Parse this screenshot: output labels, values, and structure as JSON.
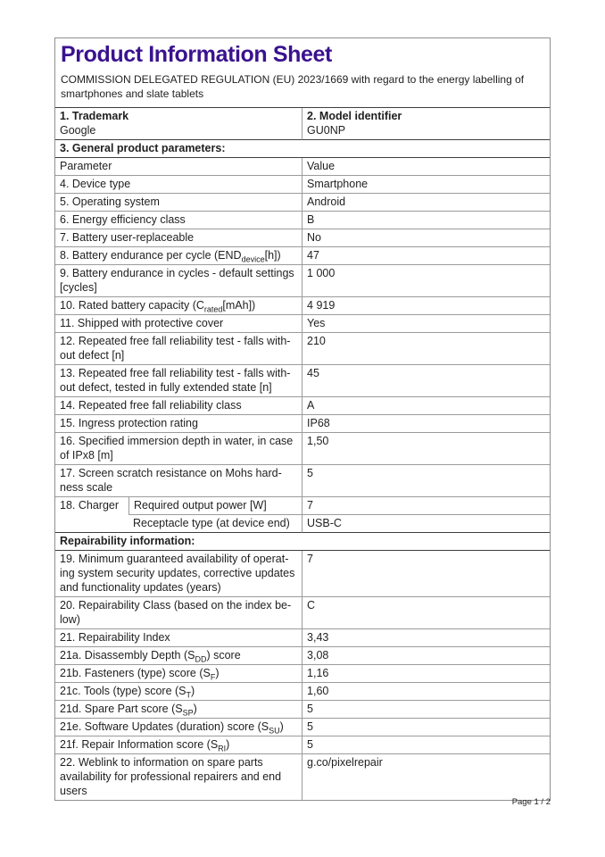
{
  "colors": {
    "title": "#3a128f",
    "text": "#1f1f1f",
    "border": "#9b9b9b",
    "border_dark": "#3d3d3d"
  },
  "header": {
    "title": "Product Information Sheet",
    "subtitle_lines": [
      "COMMISSION DELEGATED REGULATION (EU) 2023/1669 with regard to the energy labelling of",
      "smartphones and slate tablets"
    ]
  },
  "footer": {
    "page_label": "Page 1 / 2"
  },
  "table": {
    "rows": [
      {
        "type": "brand",
        "cells": [
          {
            "label": "1. Trademark",
            "value": "Google"
          },
          {
            "label": "2. Model identifier",
            "value": "GU0NP"
          }
        ]
      },
      {
        "type": "section",
        "text": "3. General product parameters:"
      },
      {
        "type": "pv",
        "param": [
          {
            "t": "Parameter"
          }
        ],
        "value": "Value"
      },
      {
        "type": "pv",
        "param": [
          {
            "t": "4. Device type"
          }
        ],
        "value": "Smartphone"
      },
      {
        "type": "pv",
        "param": [
          {
            "t": "5. Operating system"
          }
        ],
        "value": "Android"
      },
      {
        "type": "pv",
        "param": [
          {
            "t": "6. Energy efficiency class"
          }
        ],
        "value": "B"
      },
      {
        "type": "pv",
        "param": [
          {
            "t": "7. Battery user-replaceable"
          }
        ],
        "value": "No"
      },
      {
        "type": "pv",
        "param": [
          {
            "t": "8. Battery endurance per cycle (END"
          },
          {
            "t": "device",
            "sub": true
          },
          {
            "t": "[h])"
          }
        ],
        "value": "47"
      },
      {
        "type": "pv",
        "param": [
          {
            "t": "9. Battery endurance in cycles - default settings"
          },
          {
            "br": true
          },
          {
            "t": "[cycles]"
          }
        ],
        "value": "1 000"
      },
      {
        "type": "pv",
        "param": [
          {
            "t": "10. Rated battery capacity (C"
          },
          {
            "t": "rated",
            "sub": true
          },
          {
            "t": "[mAh])"
          }
        ],
        "value": "4 919"
      },
      {
        "type": "pv",
        "param": [
          {
            "t": "11. Shipped with protective cover"
          }
        ],
        "value": "Yes"
      },
      {
        "type": "pv",
        "param": [
          {
            "t": "12. Repeated free fall reliability test - falls with-"
          },
          {
            "br": true
          },
          {
            "t": "out defect [n]"
          }
        ],
        "value": "210"
      },
      {
        "type": "pv",
        "param": [
          {
            "t": "13. Repeated free fall reliability test - falls with-"
          },
          {
            "br": true
          },
          {
            "t": "out defect, tested in fully extended state [n]"
          }
        ],
        "value": "45"
      },
      {
        "type": "pv",
        "param": [
          {
            "t": "14. Repeated free fall reliability class"
          }
        ],
        "value": "A"
      },
      {
        "type": "pv",
        "param": [
          {
            "t": "15. Ingress protection rating"
          }
        ],
        "value": "IP68"
      },
      {
        "type": "pv",
        "param": [
          {
            "t": "16. Specified immersion depth in water, in case"
          },
          {
            "br": true
          },
          {
            "t": "of IPx8 [m]"
          }
        ],
        "value": "1,50"
      },
      {
        "type": "pv",
        "param": [
          {
            "t": "17. Screen scratch resistance on Mohs hard-"
          },
          {
            "br": true
          },
          {
            "t": "ness scale"
          }
        ],
        "value": "5"
      },
      {
        "type": "charger",
        "label": "18. Charger",
        "subrows": [
          {
            "param": [
              {
                "t": "Required output power [W]"
              }
            ],
            "value": "7"
          },
          {
            "param": [
              {
                "t": "Receptacle type (at device end)"
              }
            ],
            "value": "USB-C"
          }
        ]
      },
      {
        "type": "section",
        "text": "Repairability information:"
      },
      {
        "type": "pv",
        "param": [
          {
            "t": "19. Minimum guaranteed availability of operat-"
          },
          {
            "br": true
          },
          {
            "t": "ing system security updates, corrective updates"
          },
          {
            "br": true
          },
          {
            "t": "and functionality updates (years)"
          }
        ],
        "value": "7"
      },
      {
        "type": "pv",
        "param": [
          {
            "t": "20. Repairability Class (based on the index be-"
          },
          {
            "br": true
          },
          {
            "t": "low)"
          }
        ],
        "value": "C"
      },
      {
        "type": "pv",
        "param": [
          {
            "t": "21. Repairability Index"
          }
        ],
        "value": "3,43"
      },
      {
        "type": "pv",
        "indent": true,
        "param": [
          {
            "t": "21a. Disassembly Depth (S"
          },
          {
            "t": "DD",
            "sub": true
          },
          {
            "t": ") score"
          }
        ],
        "value": "3,08"
      },
      {
        "type": "pv",
        "indent": true,
        "param": [
          {
            "t": "21b. Fasteners (type) score (S"
          },
          {
            "t": "F",
            "sub": true
          },
          {
            "t": ")"
          }
        ],
        "value": "1,16"
      },
      {
        "type": "pv",
        "indent": true,
        "param": [
          {
            "t": "21c. Tools (type) score (S"
          },
          {
            "t": "T",
            "sub": true
          },
          {
            "t": ")"
          }
        ],
        "value": "1,60"
      },
      {
        "type": "pv",
        "indent": true,
        "param": [
          {
            "t": "21d. Spare Part score (S"
          },
          {
            "t": "SP",
            "sub": true
          },
          {
            "t": ")"
          }
        ],
        "value": "5"
      },
      {
        "type": "pv",
        "indent": true,
        "param": [
          {
            "t": "21e. Software Updates (duration) score (S"
          },
          {
            "t": "SU",
            "sub": true
          },
          {
            "t": ")"
          }
        ],
        "value": "5"
      },
      {
        "type": "pv",
        "indent": true,
        "param": [
          {
            "t": "21f. Repair Information score (S"
          },
          {
            "t": "RI",
            "sub": true
          },
          {
            "t": ")"
          }
        ],
        "value": "5"
      },
      {
        "type": "pv",
        "vindent": true,
        "param": [
          {
            "t": "22. Weblink to information on spare parts"
          },
          {
            "br": true
          },
          {
            "t": "availability for professional repairers and end"
          },
          {
            "br": true
          },
          {
            "t": "users"
          }
        ],
        "value": "g.co/pixelrepair"
      }
    ]
  }
}
